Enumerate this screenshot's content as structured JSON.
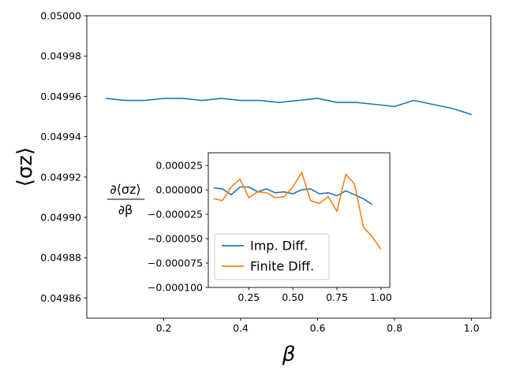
{
  "chart_data": [
    {
      "type": "line",
      "role": "main",
      "title": "",
      "xlabel": "β",
      "ylabel": "⟨σz⟩",
      "xlim": [
        0.0,
        1.05
      ],
      "ylim": [
        0.04985,
        0.05
      ],
      "xticks": [
        0.2,
        0.4,
        0.6,
        0.8,
        1.0
      ],
      "xtick_labels": [
        "0.2",
        "0.4",
        "0.6",
        "0.8",
        "1.0"
      ],
      "yticks": [
        0.04986,
        0.04988,
        0.0499,
        0.04992,
        0.04994,
        0.04996,
        0.04998,
        0.05
      ],
      "ytick_labels": [
        "0.04986",
        "0.04988",
        "0.04990",
        "0.04992",
        "0.04994",
        "0.04996",
        "0.04998",
        "0.05000"
      ],
      "series": [
        {
          "name": "⟨σz⟩",
          "color": "#1f77b4",
          "x": [
            0.05,
            0.1,
            0.15,
            0.2,
            0.25,
            0.3,
            0.35,
            0.4,
            0.45,
            0.5,
            0.55,
            0.6,
            0.65,
            0.7,
            0.75,
            0.8,
            0.85,
            0.9,
            0.95,
            1.0
          ],
          "values": [
            0.049959,
            0.049958,
            0.049958,
            0.049959,
            0.049959,
            0.049958,
            0.049959,
            0.049958,
            0.049958,
            0.049957,
            0.049958,
            0.049959,
            0.049957,
            0.049957,
            0.049956,
            0.049955,
            0.049958,
            0.049956,
            0.049954,
            0.049951
          ]
        }
      ]
    },
    {
      "type": "line",
      "role": "inset",
      "title": "",
      "xlabel": "",
      "ylabel": "∂⟨σz⟩ / ∂β",
      "xlim": [
        0.02,
        1.05
      ],
      "ylim": [
        -0.0001,
        3.8e-05
      ],
      "xticks": [
        0.25,
        0.5,
        0.75,
        1.0
      ],
      "xtick_labels": [
        "0.25",
        "0.50",
        "0.75",
        "1.00"
      ],
      "yticks": [
        -0.0001,
        -7.5e-05,
        -5e-05,
        -2.5e-05,
        0.0,
        2.5e-05
      ],
      "ytick_labels": [
        "−0.000100",
        "−0.000075",
        "−0.000050",
        "−0.000025",
        "0.000000",
        "0.000025"
      ],
      "legend": {
        "placement": "lower-left"
      },
      "series": [
        {
          "name": "Imp. Diff.",
          "color": "#1f77b4",
          "x": [
            0.05,
            0.1,
            0.15,
            0.2,
            0.25,
            0.3,
            0.35,
            0.4,
            0.45,
            0.5,
            0.55,
            0.6,
            0.65,
            0.7,
            0.75,
            0.8,
            0.85,
            0.9,
            0.95,
            1.0
          ],
          "values": [
            2e-06,
            1e-06,
            -5e-06,
            3e-06,
            3e-06,
            -2e-06,
            1e-06,
            -3e-06,
            -2e-06,
            -4e-06,
            0.0,
            1e-06,
            -4e-06,
            -3e-06,
            -6e-06,
            -1e-06,
            -5e-06,
            -9e-06,
            -1.5e-05,
            null
          ]
        },
        {
          "name": "Finite Diff.",
          "color": "#ff7f0e",
          "x": [
            0.05,
            0.1,
            0.15,
            0.2,
            0.25,
            0.3,
            0.35,
            0.4,
            0.45,
            0.5,
            0.55,
            0.6,
            0.65,
            0.7,
            0.75,
            0.8,
            0.85,
            0.9,
            0.95,
            1.0
          ],
          "values": [
            -9e-06,
            -1.1e-05,
            3e-06,
            1.1e-05,
            -8e-06,
            -2e-06,
            -3e-06,
            -8e-06,
            -7e-06,
            3e-06,
            1.8e-05,
            -1.1e-05,
            -1.4e-05,
            -7e-06,
            -2.2e-05,
            1.6e-05,
            6e-06,
            -3.8e-05,
            -4.8e-05,
            -6.1e-05
          ]
        }
      ]
    }
  ]
}
